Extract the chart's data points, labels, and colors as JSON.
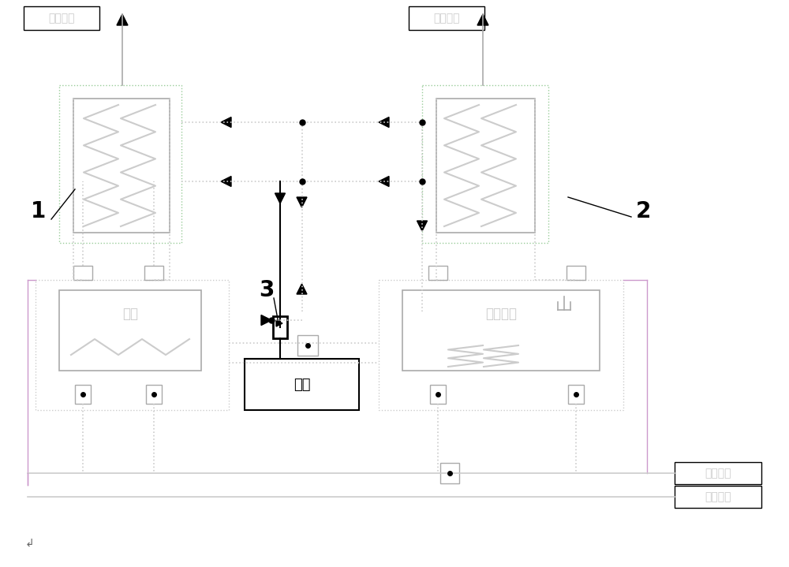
{
  "bg_color": "#ffffff",
  "gray": "#aaaaaa",
  "lgray": "#cccccc",
  "dgray": "#666666",
  "green": "#99cc99",
  "pink": "#cc99cc",
  "black": "#000000",
  "text_yanqi": "烟气出口",
  "text_guolu": "锅炉",
  "text_rebeng": "热泵机组",
  "text_shuixiang": "水筱",
  "text_huiwang": "热网回水",
  "text_gongsui": "热网供水",
  "label_1": "1",
  "label_2": "2",
  "label_3": "3"
}
